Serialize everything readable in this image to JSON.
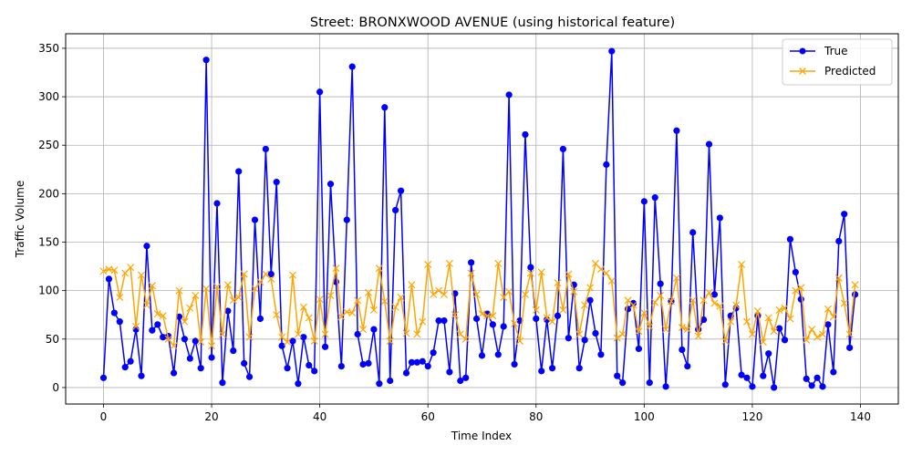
{
  "chart_data": {
    "type": "line",
    "title": "Street: BRONXWOOD AVENUE (using historical feature)",
    "xlabel": "Time Index",
    "ylabel": "Traffic Volume",
    "xlim": [
      -7,
      147
    ],
    "ylim": [
      -17,
      365
    ],
    "xticks": [
      0,
      20,
      40,
      60,
      80,
      100,
      120,
      140
    ],
    "yticks": [
      0,
      50,
      100,
      150,
      200,
      250,
      300,
      350
    ],
    "grid": true,
    "legend_position": "top-right",
    "series": [
      {
        "name": "True",
        "color": "#0000ff",
        "marker": "circle",
        "values": [
          10,
          112,
          77,
          68,
          21,
          27,
          60,
          12,
          146,
          59,
          65,
          52,
          53,
          15,
          73,
          50,
          30,
          48,
          20,
          338,
          31,
          190,
          5,
          79,
          38,
          223,
          25,
          11,
          173,
          71,
          246,
          117,
          212,
          43,
          20,
          48,
          4,
          52,
          23,
          17,
          305,
          42,
          210,
          109,
          22,
          173,
          331,
          55,
          24,
          25,
          60,
          4,
          289,
          7,
          183,
          203,
          15,
          26,
          26,
          27,
          22,
          36,
          69,
          69,
          16,
          97,
          7,
          10,
          129,
          71,
          33,
          76,
          65,
          34,
          63,
          302,
          24,
          69,
          261,
          124,
          71,
          17,
          70,
          20,
          74,
          246,
          51,
          106,
          20,
          49,
          90,
          56,
          34,
          230,
          347,
          12,
          5,
          81,
          87,
          40,
          192,
          5,
          196,
          107,
          1,
          89,
          265,
          39,
          22,
          160,
          60,
          70,
          251,
          96,
          175,
          3,
          74,
          82,
          13,
          10,
          1,
          74,
          12,
          35,
          0,
          61,
          49,
          153,
          119,
          91,
          9,
          2,
          10,
          1,
          65,
          16,
          151,
          179,
          41,
          96
        ]
      },
      {
        "name": "Predicted",
        "color": "#ffa500",
        "marker": "x",
        "values": [
          120,
          122,
          121,
          93,
          118,
          124,
          63,
          116,
          85,
          105,
          76,
          74,
          50,
          43,
          100,
          68,
          82,
          95,
          47,
          102,
          43,
          104,
          55,
          106,
          90,
          93,
          117,
          52,
          102,
          109,
          117,
          112,
          75,
          52,
          47,
          116,
          55,
          83,
          72,
          48,
          91,
          55,
          95,
          123,
          73,
          78,
          77,
          90,
          60,
          98,
          80,
          123,
          89,
          48,
          83,
          93,
          56,
          106,
          55,
          68,
          127,
          96,
          100,
          96,
          128,
          75,
          55,
          50,
          118,
          96,
          76,
          74,
          74,
          128,
          93,
          99,
          66,
          48,
          96,
          118,
          80,
          119,
          72,
          68,
          108,
          80,
          117,
          99,
          55,
          85,
          103,
          128,
          122,
          118,
          110,
          51,
          55,
          90,
          85,
          58,
          77,
          63,
          88,
          95,
          60,
          89,
          113,
          62,
          60,
          90,
          53,
          90,
          98,
          87,
          84,
          48,
          68,
          85,
          127,
          68,
          55,
          79,
          47,
          72,
          58,
          80,
          82,
          71,
          100,
          103,
          49,
          60,
          52,
          55,
          81,
          73,
          113,
          87,
          55,
          106
        ]
      }
    ]
  }
}
